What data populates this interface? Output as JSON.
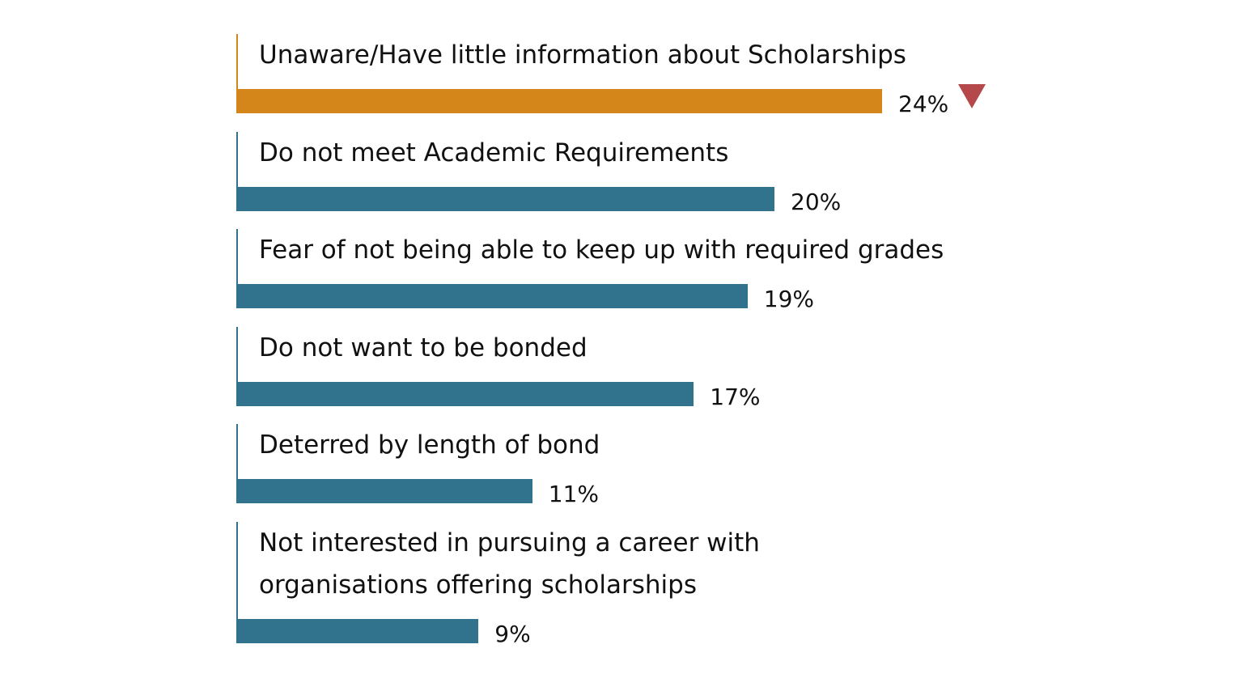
{
  "chart_data": {
    "type": "bar",
    "orientation": "horizontal",
    "categories": [
      "Unaware/Have little information about Scholarships",
      "Do not meet Academic Requirements",
      "Fear of not being able to keep up with required grades",
      "Do not want to be bonded",
      "Deterred by length of bond",
      "Not interested in pursuing a career with\norganisations offering scholarships"
    ],
    "values": [
      24,
      20,
      19,
      17,
      11,
      9
    ],
    "value_labels": [
      "24%",
      "20%",
      "19%",
      "17%",
      "11%",
      "9%"
    ],
    "colors": [
      "#d4861a",
      "#31728c",
      "#31728c",
      "#31728c",
      "#31728c",
      "#31728c"
    ]
  }
}
